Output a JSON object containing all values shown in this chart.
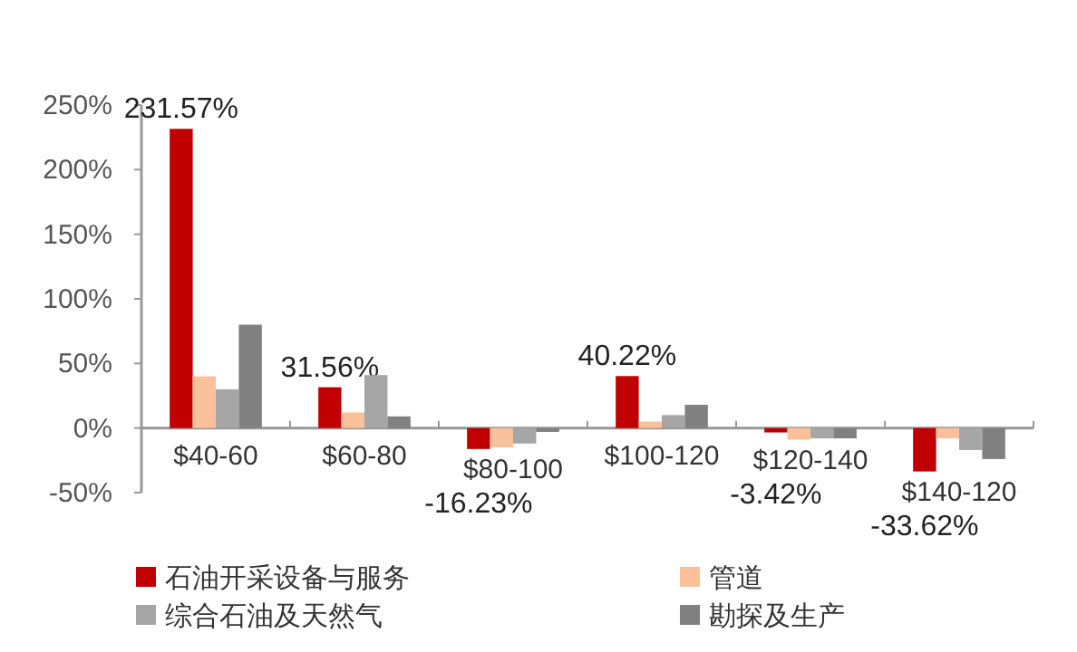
{
  "chart_data": {
    "type": "bar",
    "categories": [
      "$40-60",
      "$60-80",
      "$80-100",
      "$100-120",
      "$120-140",
      "$140-120"
    ],
    "series": [
      {
        "name": "石油开采设备与服务",
        "color": "#c00000",
        "values": [
          231.57,
          31.56,
          -16.23,
          40.22,
          -3.42,
          -33.62
        ],
        "value_labels": [
          "231.57%",
          "31.56%",
          "-16.23%",
          "40.22%",
          "-3.42%",
          "-33.62%"
        ]
      },
      {
        "name": "管道",
        "color": "#f9c09a",
        "values": [
          40,
          12,
          -15,
          5,
          -9,
          -8
        ]
      },
      {
        "name": "综合石油及天然气",
        "color": "#a6a6a6",
        "values": [
          30,
          41,
          -12,
          10,
          -8,
          -17
        ]
      },
      {
        "name": "勘探及生产",
        "color": "#808080",
        "values": [
          80,
          9,
          -3,
          18,
          -8,
          -24
        ]
      }
    ],
    "ylim": [
      -50,
      250
    ],
    "yticks": [
      {
        "value": -50,
        "label": "-50%"
      },
      {
        "value": 0,
        "label": "0%"
      },
      {
        "value": 50,
        "label": "50%"
      },
      {
        "value": 100,
        "label": "100%"
      },
      {
        "value": 150,
        "label": "150%"
      },
      {
        "value": 200,
        "label": "200%"
      },
      {
        "value": 250,
        "label": "250%"
      }
    ],
    "grid": false,
    "legend": "bottom"
  }
}
